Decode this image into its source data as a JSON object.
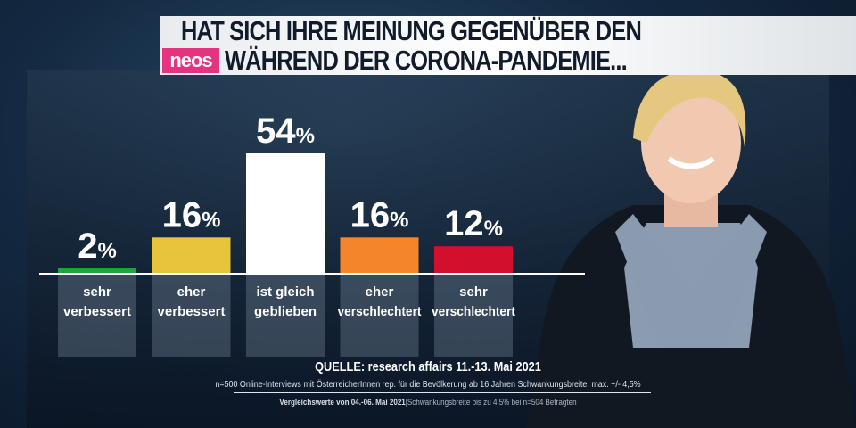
{
  "header": {
    "title_line1": "HAT SICH IHRE MEINUNG GEGENÜBER DEN",
    "title_line2": "WÄHREND DER CORONA-PANDEMIE...",
    "logo": "neos",
    "logo_color": "#e4347f"
  },
  "chart_data": {
    "type": "bar",
    "categories": [
      "sehr verbessert",
      "eher verbessert",
      "ist gleich geblieben",
      "eher verschlechtert",
      "sehr verschlechtert"
    ],
    "category_lines": [
      [
        "sehr",
        "verbessert"
      ],
      [
        "eher",
        "verbessert"
      ],
      [
        "ist gleich",
        "geblieben"
      ],
      [
        "eher",
        "verschlechtert"
      ],
      [
        "sehr",
        "verschlechtert"
      ]
    ],
    "values": [
      2,
      16,
      54,
      16,
      12
    ],
    "value_labels": [
      "2",
      "16",
      "54",
      "16",
      "12"
    ],
    "unit": "%",
    "colors": [
      "#1fa63a",
      "#e8c43c",
      "#ffffff",
      "#f5852a",
      "#d2102e"
    ],
    "ylim": [
      0,
      54
    ],
    "grid": false
  },
  "footer": {
    "source": "QUELLE: research affairs 11.-13. Mai 2021",
    "note": "n=500 Online-Interviews mit ÖsterreicherInnen rep. für die Bevölkerung ab 16 Jahren  Schwankungsbreite: max. +/- 4,5%",
    "compare_bold": "Vergleichswerte von  04.-06. Mai 2021",
    "compare_rest": "|Schwankungsbreite bis zu 4,5% bei n=504 Befragten"
  }
}
